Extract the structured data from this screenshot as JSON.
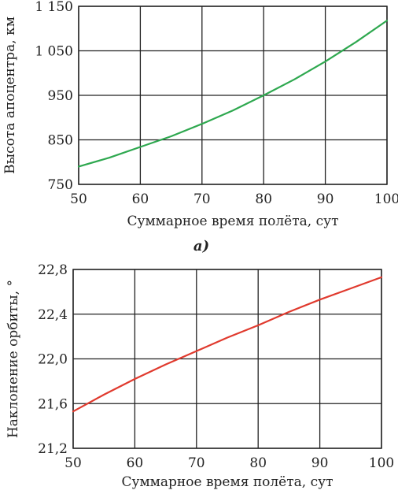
{
  "chart_data": [
    {
      "type": "line",
      "caption": "a)",
      "xlabel": "Суммарное время полёта, сут",
      "ylabel": "Высота апоцентра, км",
      "xlim": [
        50,
        100
      ],
      "ylim": [
        750,
        1150
      ],
      "xticks": [
        50,
        60,
        70,
        80,
        90,
        100
      ],
      "yticks": [
        750,
        850,
        950,
        1050,
        1150
      ],
      "xtick_labels": [
        "50",
        "60",
        "70",
        "80",
        "90",
        "100"
      ],
      "ytick_labels": [
        "750",
        "850",
        "950",
        "1 050",
        "1 150"
      ],
      "grid": true,
      "series": [
        {
          "color": "#2ea84f",
          "x": [
            50,
            55,
            60,
            65,
            70,
            75,
            80,
            85,
            90,
            95,
            100
          ],
          "y": [
            790,
            810,
            834,
            858,
            886,
            916,
            950,
            986,
            1026,
            1070,
            1118
          ]
        }
      ]
    },
    {
      "type": "line",
      "caption": "",
      "xlabel": "Суммарное время полёта, сут",
      "ylabel": "Наклонение орбиты, °",
      "xlim": [
        50,
        100
      ],
      "ylim": [
        21.2,
        22.8
      ],
      "xticks": [
        50,
        60,
        70,
        80,
        90,
        100
      ],
      "yticks": [
        21.2,
        21.6,
        22.0,
        22.4,
        22.8
      ],
      "xtick_labels": [
        "50",
        "60",
        "70",
        "80",
        "90",
        "100"
      ],
      "ytick_labels": [
        "21,2",
        "21,6",
        "22,0",
        "22,4",
        "22,8"
      ],
      "grid": true,
      "series": [
        {
          "color": "#e03a2e",
          "x": [
            50,
            55,
            60,
            65,
            70,
            75,
            80,
            85,
            90,
            95,
            100
          ],
          "y": [
            21.53,
            21.68,
            21.82,
            21.95,
            22.07,
            22.19,
            22.3,
            22.42,
            22.53,
            22.63,
            22.73
          ]
        }
      ]
    }
  ]
}
